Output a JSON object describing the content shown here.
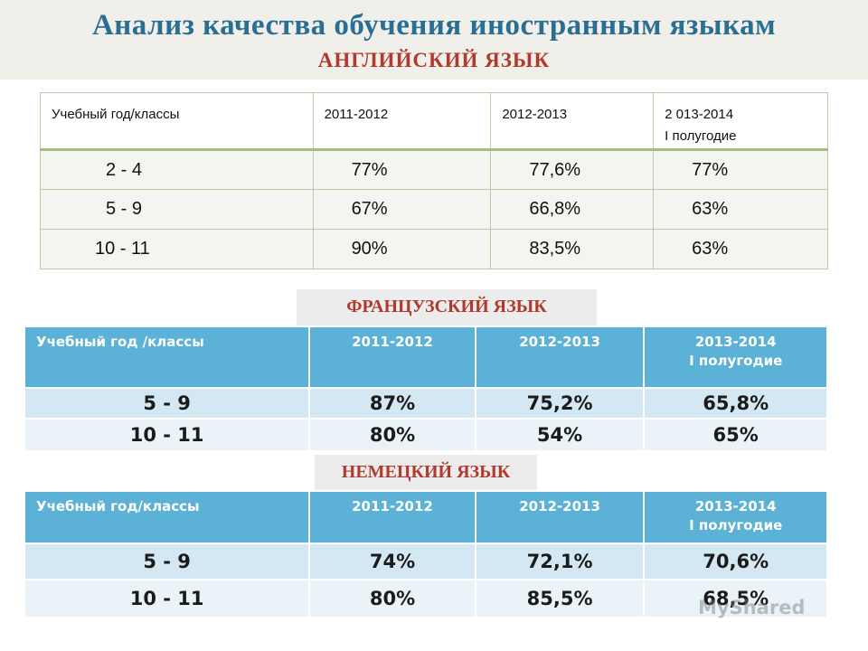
{
  "header": {
    "title": "Анализ качества обучения иностранным языкам",
    "subtitle": "АНГЛИЙСКИЙ ЯЗЫК"
  },
  "english": {
    "columns": [
      "Учебный год/классы",
      "2011-2012",
      "2012-2013",
      "2 013-2014",
      "I полугодие"
    ],
    "rows": [
      [
        "2 - 4",
        "77%",
        "77,6%",
        "77%"
      ],
      [
        "5 - 9",
        "67%",
        "66,8%",
        "63%"
      ],
      [
        "10 - 11",
        "90%",
        "83,5%",
        "63%"
      ]
    ]
  },
  "french": {
    "label": "ФРАНЦУЗСКИЙ ЯЗЫК",
    "columns": [
      "Учебный год /классы",
      "2011-2012",
      "2012-2013",
      "2013-2014",
      "I полугодие"
    ],
    "rows": [
      [
        "5 - 9",
        "87%",
        "75,2%",
        "65,8%"
      ],
      [
        "10 - 11",
        "80%",
        "54%",
        "65%"
      ]
    ]
  },
  "german": {
    "label": "НЕМЕЦКИЙ ЯЗЫК",
    "columns": [
      "Учебный год/классы",
      "2011-2012",
      "2012-2013",
      "2013-2014",
      "I полугодие"
    ],
    "rows": [
      [
        "5 - 9",
        "74%",
        "72,1%",
        "70,6%"
      ],
      [
        "10 - 11",
        "80%",
        "85,5%",
        "68,5%"
      ]
    ]
  },
  "watermark": "MyShared",
  "colors": {
    "title": "#2a6f93",
    "subtitle": "#b03a2e",
    "table_header_blue": "#5bb1d6",
    "table_row_light": "#d3e8f2"
  }
}
